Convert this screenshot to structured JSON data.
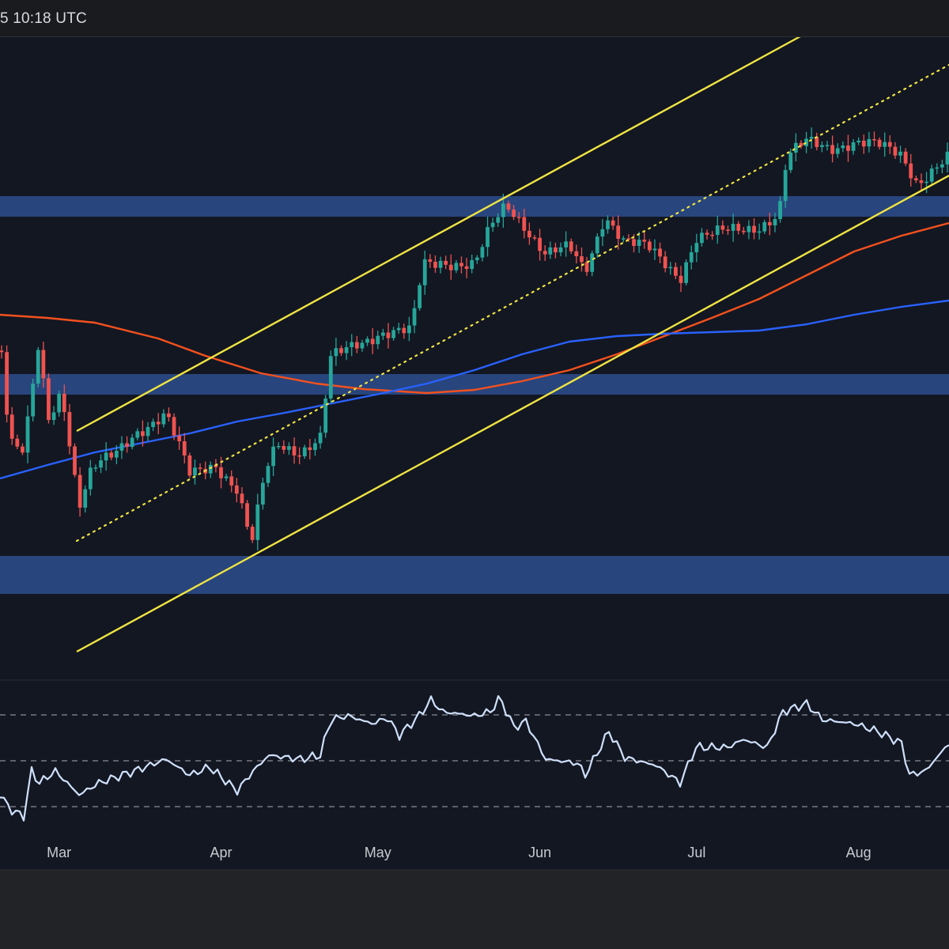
{
  "header": {
    "timestamp_text": "5 10:18 UTC"
  },
  "colors": {
    "background": "#131722",
    "bottom_panel": "#222326",
    "bull_candle": "#26a69a",
    "bear_candle": "#ef5350",
    "zone_fill": "#2a4a86",
    "channel_line": "#f0e442",
    "ma_orange": "#f4511e",
    "ma_blue": "#2962ff",
    "rsi_line": "#cfe0fb",
    "rsi_guides": "#8a8d96"
  },
  "chart_data": [
    {
      "type": "candlestick",
      "title": "",
      "x_axis_labels": [
        "Mar",
        "Apr",
        "May",
        "Jun",
        "Jul",
        "Aug"
      ],
      "start_date": "2025-02-18",
      "end_date": "2025-08-18",
      "candle_count": 182,
      "price_range": [
        0,
        100
      ],
      "channel": {
        "style": "ascending",
        "lines": [
          "upper-solid",
          "mid-dotted",
          "lower-solid"
        ]
      },
      "zones": [
        "upper-zone",
        "middle-zone",
        "lower-zone"
      ],
      "moving_averages": [
        {
          "name": "",
          "color": "#f4511e"
        },
        {
          "name": "",
          "color": "#2962ff"
        }
      ]
    },
    {
      "type": "line",
      "title": "",
      "indicator": "RSI",
      "guide_levels": [
        70,
        50,
        30
      ],
      "grid": false
    }
  ]
}
